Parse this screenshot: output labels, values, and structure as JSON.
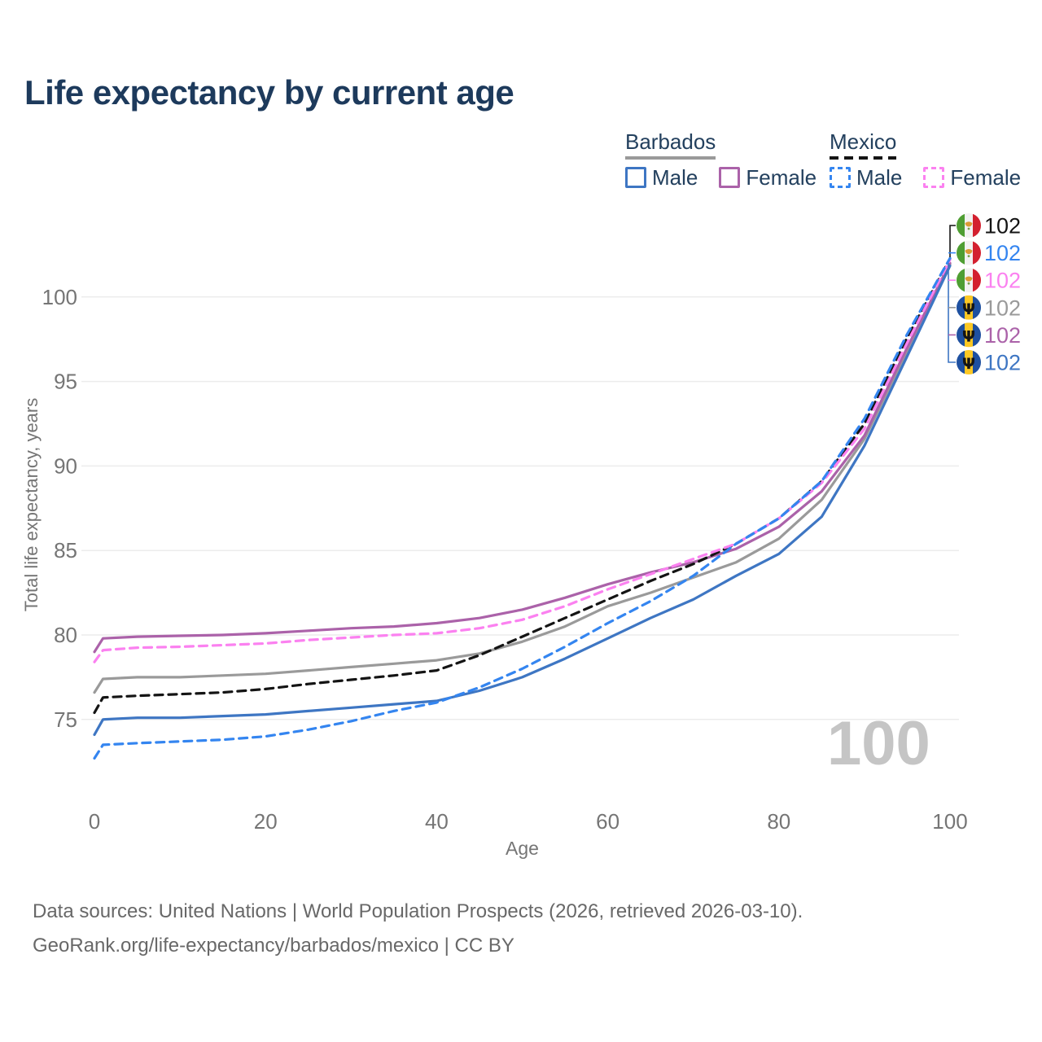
{
  "title": "Life expectancy by current age",
  "legend": {
    "groups": [
      {
        "label": "Barbados",
        "line_style": "solid",
        "underline_color": "#9a9a9a",
        "items": [
          {
            "label": "Male",
            "color": "#3e76c3"
          },
          {
            "label": "Female",
            "color": "#ab62a9"
          }
        ]
      },
      {
        "label": "Mexico",
        "line_style": "dashed",
        "underline_color": "#141414",
        "items": [
          {
            "label": "Male",
            "color": "#3485f0"
          },
          {
            "label": "Female",
            "color": "#fb81f0"
          }
        ]
      }
    ]
  },
  "watermark": "100",
  "footer": {
    "line1": "Data sources: United Nations | World Population Prospects (2026, retrieved 2026-03-10).",
    "line2": "GeoRank.org/life-expectancy/barbados/mexico | CC BY"
  },
  "chart_data": {
    "type": "line",
    "title": "Life expectancy by current age",
    "xlabel": "Age",
    "ylabel": "Total life expectancy, years",
    "xlim": [
      0,
      100
    ],
    "ylim": [
      71.5,
      103.5
    ],
    "x_ticks": [
      0,
      20,
      40,
      60,
      80,
      100
    ],
    "y_ticks": [
      75,
      80,
      85,
      90,
      95,
      100
    ],
    "grid": "horizontal-only",
    "legend_position": "top-right",
    "hover_age": 100,
    "x": [
      0,
      1,
      5,
      10,
      15,
      20,
      25,
      30,
      35,
      40,
      45,
      50,
      55,
      60,
      65,
      70,
      75,
      80,
      85,
      90,
      95,
      100
    ],
    "series": [
      {
        "name": "Barbados Both sexes",
        "country": "Barbados",
        "sex": "both",
        "color": "#9a9a9a",
        "dashed": false,
        "values": [
          76.6,
          77.4,
          77.5,
          77.5,
          77.6,
          77.7,
          77.9,
          78.1,
          78.3,
          78.5,
          78.9,
          79.6,
          80.5,
          81.7,
          82.5,
          83.4,
          84.3,
          85.7,
          88.0,
          91.6,
          96.8,
          101.95
        ]
      },
      {
        "name": "Barbados Female",
        "country": "Barbados",
        "sex": "female",
        "color": "#ab62a9",
        "dashed": false,
        "values": [
          79.0,
          79.8,
          79.9,
          79.95,
          80.0,
          80.1,
          80.25,
          80.4,
          80.5,
          80.7,
          81.0,
          81.5,
          82.2,
          83.0,
          83.7,
          84.3,
          85.1,
          86.4,
          88.5,
          91.8,
          97.0,
          102.0
        ]
      },
      {
        "name": "Barbados Male",
        "country": "Barbados",
        "sex": "male",
        "color": "#3e76c3",
        "dashed": false,
        "values": [
          74.1,
          75.0,
          75.1,
          75.1,
          75.2,
          75.3,
          75.5,
          75.7,
          75.9,
          76.1,
          76.7,
          77.5,
          78.6,
          79.8,
          81.0,
          82.1,
          83.5,
          84.8,
          87.0,
          91.2,
          96.5,
          101.85
        ]
      },
      {
        "name": "Mexico Both sexes",
        "country": "Mexico",
        "sex": "both",
        "color": "#141414",
        "dashed": true,
        "values": [
          75.4,
          76.3,
          76.4,
          76.5,
          76.6,
          76.8,
          77.1,
          77.35,
          77.6,
          77.9,
          78.8,
          79.9,
          81.0,
          82.1,
          83.2,
          84.2,
          85.4,
          86.9,
          89.1,
          92.5,
          97.6,
          102.25
        ]
      },
      {
        "name": "Mexico Female",
        "country": "Mexico",
        "sex": "female",
        "color": "#fb81f0",
        "dashed": true,
        "values": [
          78.4,
          79.1,
          79.25,
          79.3,
          79.4,
          79.5,
          79.7,
          79.85,
          80.0,
          80.1,
          80.4,
          80.9,
          81.7,
          82.7,
          83.6,
          84.5,
          85.4,
          86.9,
          89.0,
          92.2,
          97.3,
          102.2
        ]
      },
      {
        "name": "Mexico Male",
        "country": "Mexico",
        "sex": "male",
        "color": "#3485f0",
        "dashed": true,
        "values": [
          72.7,
          73.5,
          73.6,
          73.7,
          73.8,
          74.0,
          74.4,
          74.9,
          75.5,
          76.0,
          76.9,
          78.0,
          79.3,
          80.7,
          82.0,
          83.5,
          85.4,
          86.9,
          89.1,
          92.8,
          97.8,
          102.3
        ]
      }
    ],
    "end_labels": [
      {
        "value": "102",
        "flag": "mexico",
        "series": "Mexico Both sexes",
        "color": "#141414"
      },
      {
        "value": "102",
        "flag": "mexico",
        "series": "Mexico Male",
        "color": "#3485f0"
      },
      {
        "value": "102",
        "flag": "mexico",
        "series": "Mexico Female",
        "color": "#fb81f0"
      },
      {
        "value": "102",
        "flag": "barbados",
        "series": "Barbados Both sexes",
        "color": "#9a9a9a"
      },
      {
        "value": "102",
        "flag": "barbados",
        "series": "Barbados Female",
        "color": "#ab62a9"
      },
      {
        "value": "102",
        "flag": "barbados",
        "series": "Barbados Male",
        "color": "#3e76c3"
      }
    ],
    "flag_colors": {
      "mexico": {
        "left": "#4f9e33",
        "mid": "#f2f2f2",
        "right": "#d3202f",
        "emblem": "#dc9b35"
      },
      "barbados": {
        "left": "#1e50a0",
        "mid": "#fdc824",
        "right": "#1e50a0",
        "emblem": "#151515"
      }
    }
  }
}
